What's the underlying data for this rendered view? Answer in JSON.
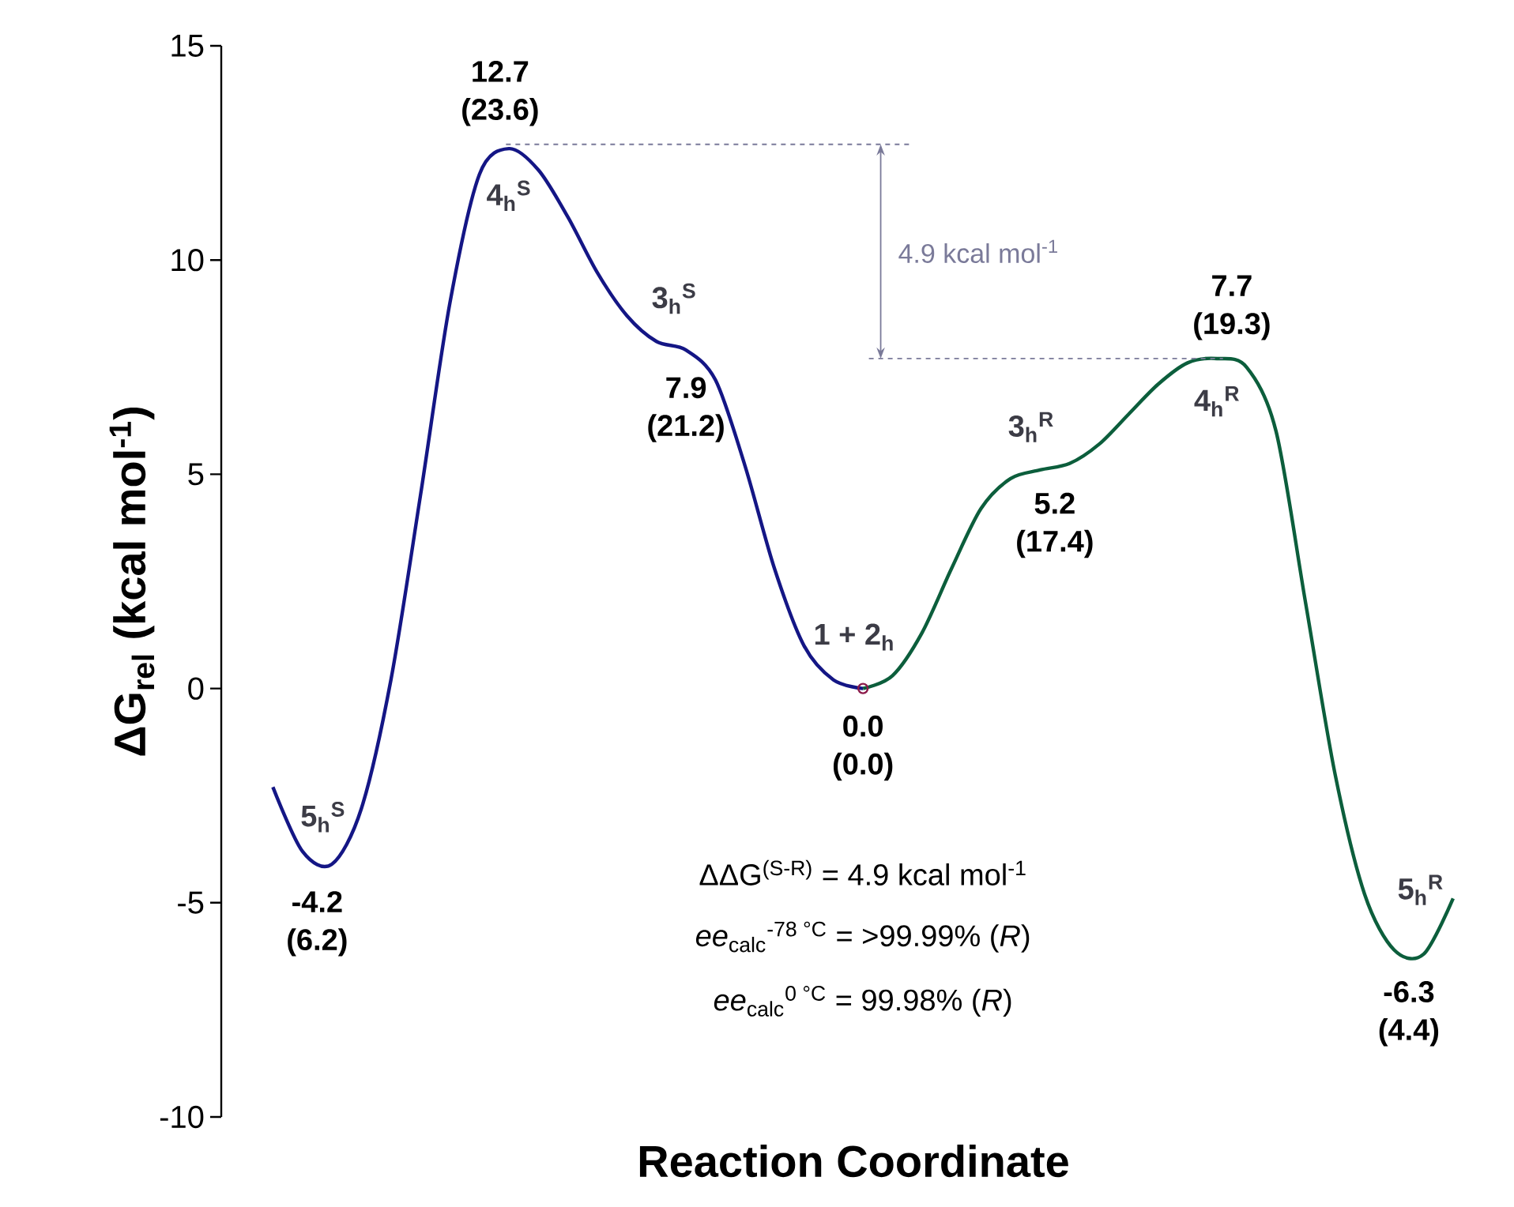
{
  "chart_data": {
    "type": "line",
    "xlabel": "Reaction Coordinate",
    "ylabel": "ΔG$_{rel}$ (kcal mol$^{-1}$)",
    "categories": [
      null,
      null,
      null,
      null,
      null,
      null,
      null,
      null,
      null,
      null,
      null,
      null,
      null,
      null,
      null,
      null,
      null,
      null,
      null,
      null,
      null,
      null,
      null,
      null,
      null,
      null,
      null,
      null,
      null,
      null,
      null,
      null,
      null,
      null,
      null,
      null,
      null,
      null,
      null,
      null,
      null
    ],
    "series": [
      {
        "color": "#141685",
        "values": [
          -2.3,
          -3.8,
          -4.1,
          -2.8,
          0.2,
          4.5,
          9.0,
          12.0,
          12.6,
          12.1,
          11.0,
          9.7,
          8.7,
          8.1,
          7.9,
          7.2,
          5.2,
          2.8,
          1.0,
          0.2,
          0.0,
          null,
          null,
          null,
          null,
          null,
          null,
          null,
          null,
          null,
          null,
          null,
          null,
          null,
          null,
          null,
          null,
          null,
          null,
          null,
          null
        ]
      },
      {
        "color": "#0c5e3c",
        "values": [
          null,
          null,
          null,
          null,
          null,
          null,
          null,
          null,
          null,
          null,
          null,
          null,
          null,
          null,
          null,
          null,
          null,
          null,
          null,
          null,
          0.0,
          0.3,
          1.3,
          2.8,
          4.2,
          4.9,
          5.1,
          5.25,
          5.7,
          6.4,
          7.1,
          7.6,
          7.7,
          7.5,
          6.0,
          2.0,
          -2.0,
          -4.8,
          -6.1,
          -6.2,
          -4.9
        ]
      },
      {
        "type": "scatter",
        "color": "#8b1a4a",
        "marker": "circle",
        "values": [
          null,
          null,
          null,
          null,
          null,
          null,
          null,
          null,
          null,
          null,
          null,
          null,
          null,
          null,
          null,
          null,
          null,
          null,
          null,
          null,
          0.0,
          null,
          null,
          null,
          null,
          null,
          null,
          null,
          null,
          null,
          null,
          null,
          null,
          null,
          null,
          null,
          null,
          null,
          null,
          null,
          null
        ]
      }
    ],
    "ylim": [
      -10,
      15
    ],
    "yticks": [
      -10,
      -5,
      0,
      5,
      10,
      15
    ],
    "tick_labels": "y",
    "line_style": "solid",
    "ref_lines": [
      {
        "axis": "y",
        "value": 12.7,
        "color": "#7a7a99",
        "line_style": "dashed"
      },
      {
        "axis": "y",
        "value": 7.7,
        "color": "#7a7a99",
        "line_style": "dashed"
      }
    ],
    "annotations": [
      "12.7 (23.6)",
      "7.9 (21.2)",
      "0.0 (0.0)",
      "-4.2 (6.2)",
      "5.2 (17.4)",
      "7.7 (19.3)",
      "-6.3 (4.4)",
      "4$_{h}$$^{S}$",
      "3$_{h}$$^{S}$",
      "1 + 2$_{h}$",
      "5$_{h}$$^{S}$",
      "3$_{h}$$^{R}$",
      "4$_{h}$$^{R}$",
      "5$_{h}$$^{R}$",
      "4.9 kcal mol$^{-1}$",
      "ΔΔG$^{(S-R)}$ = 4.9 kcal mol$^{-1}$",
      "*ee*$_{calc}$$^{-78 °C}$ = >99.99% (*R*)",
      "*ee*$_{calc}$$^{0 °C}$ = 99.98% (*R*)"
    ]
  }
}
